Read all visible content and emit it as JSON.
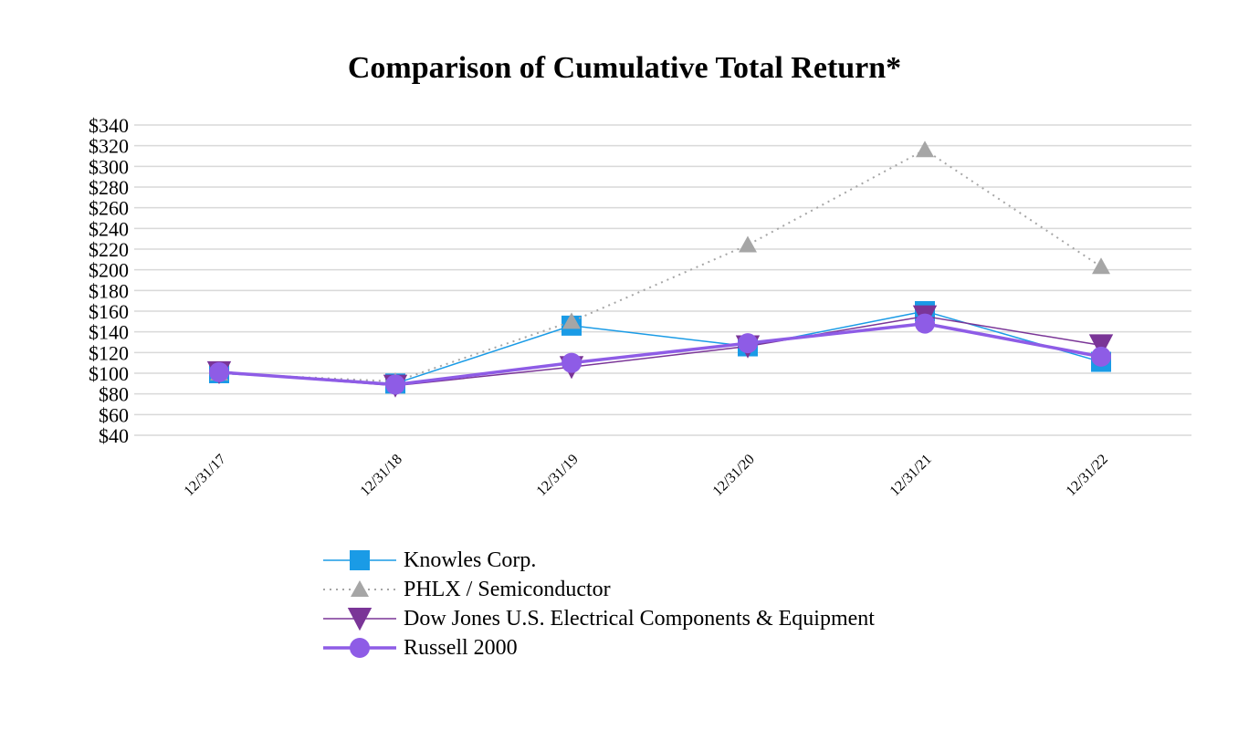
{
  "chart_data": {
    "type": "line",
    "title": "Comparison of Cumulative Total Return*",
    "xlabel": "",
    "ylabel": "",
    "categories": [
      "12/31/17",
      "12/31/18",
      "12/31/19",
      "12/31/20",
      "12/31/21",
      "12/31/22"
    ],
    "ylim": [
      40,
      340
    ],
    "yticks": [
      "$40",
      "$60",
      "$80",
      "$100",
      "$120",
      "$140",
      "$160",
      "$180",
      "$200",
      "$220",
      "$240",
      "$260",
      "$280",
      "$300",
      "$320",
      "$340"
    ],
    "grid": true,
    "legend_position": "bottom",
    "series": [
      {
        "name": "Knowles Corp.",
        "values": [
          100,
          90,
          146,
          126,
          160,
          111
        ],
        "color": "#1a9be6",
        "marker": "square",
        "line": "solid"
      },
      {
        "name": "PHLX / Semiconductor",
        "values": [
          100,
          92,
          150,
          224,
          316,
          203
        ],
        "color": "#a6a6a6",
        "marker": "triangle-up",
        "line": "dotted"
      },
      {
        "name": "Dow Jones U.S. Electrical Components & Equipment",
        "values": [
          101,
          88,
          106,
          126,
          155,
          127
        ],
        "color": "#7a3597",
        "marker": "triangle-down",
        "line": "solid"
      },
      {
        "name": "Russell 2000",
        "values": [
          101,
          89,
          110,
          129,
          148,
          116
        ],
        "color": "#8e5ce6",
        "marker": "circle",
        "line": "thick"
      }
    ]
  }
}
